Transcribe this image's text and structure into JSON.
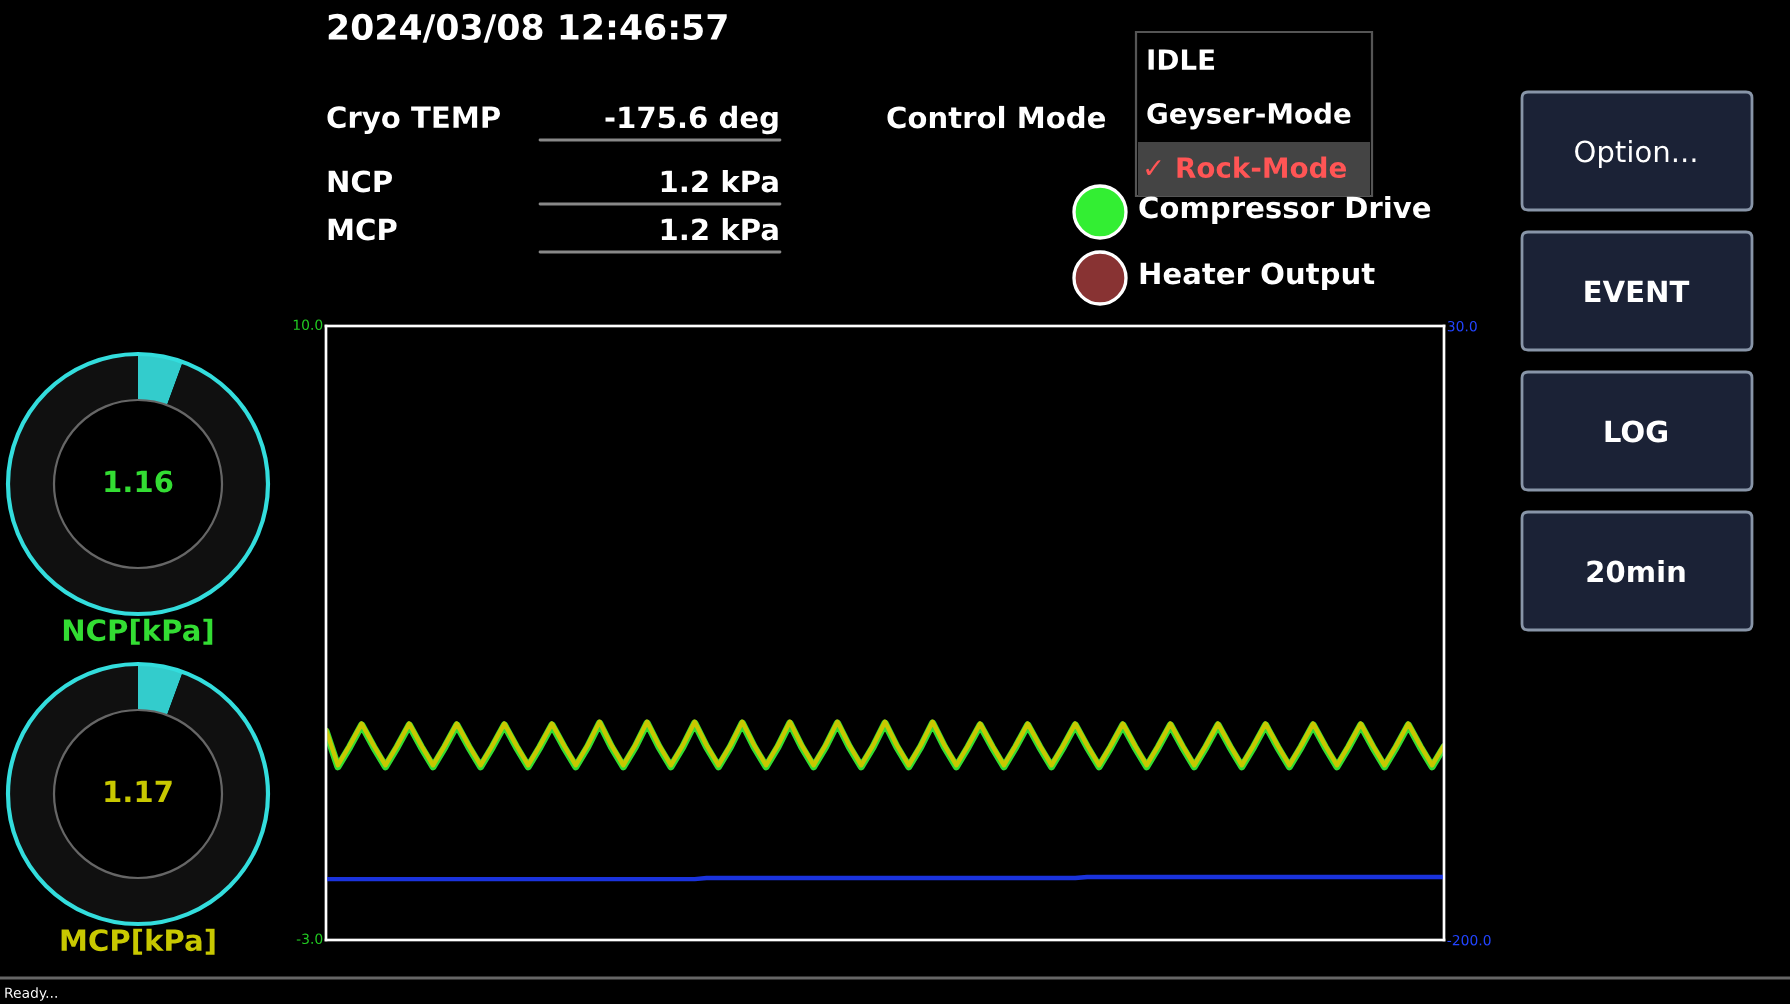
{
  "chart_data": [
    {
      "type": "other",
      "title": "2024/03/08 12:46:57",
      "annotations": [
        "Cryo TEMP",
        "-175.6 deg",
        "NCP",
        "1.2 kPa",
        "MCP",
        "1.2 kPa",
        "Control Mode",
        "IDLE",
        "Geyser-Mode",
        "✓ Rock-Mode",
        "Compressor Drive",
        "Heater Output",
        "Option...",
        "EVENT",
        "LOG",
        "20min",
        "Ready..."
      ]
    },
    {
      "type": "donut",
      "categories": [
        null,
        null
      ],
      "values": [
        5.6,
        94.4
      ],
      "colors": [
        "#33cccc",
        "#101010"
      ],
      "xlabel": "NCP[kPa]",
      "annotations": [
        "1.16"
      ]
    },
    {
      "type": "donut",
      "categories": [
        null,
        null
      ],
      "values": [
        5.6,
        94.4
      ],
      "colors": [
        "#33cccc",
        "#101010"
      ],
      "xlabel": "MCP[kPa]",
      "annotations": [
        "1.17"
      ]
    },
    {
      "type": "line",
      "categories": [
        null,
        null,
        null,
        null,
        null,
        null,
        null,
        null,
        null,
        null,
        null,
        null,
        null,
        null,
        null,
        null,
        null,
        null,
        null,
        null,
        null,
        null,
        null,
        null,
        null,
        null,
        null,
        null,
        null,
        null,
        null,
        null,
        null,
        null,
        null,
        null,
        null,
        null,
        null,
        null,
        null,
        null,
        null,
        null,
        null,
        null,
        null,
        null,
        null,
        null,
        null,
        null,
        null,
        null,
        null,
        null,
        null,
        null,
        null,
        null,
        null,
        null,
        null,
        null,
        null,
        null,
        null,
        null,
        null,
        null,
        null,
        null,
        null,
        null,
        null,
        null,
        null,
        null,
        null,
        null,
        null,
        null,
        null,
        null,
        null,
        null,
        null,
        null,
        null,
        null,
        null,
        null,
        null,
        null,
        null
      ],
      "ylim": [
        -3,
        10
      ],
      "yticks": [
        {
          "value": 10,
          "label": "10.0"
        },
        {
          "value": -3,
          "label": "-3.0"
        }
      ],
      "y2lim": [
        -200,
        30
      ],
      "y2ticks": [
        {
          "value": 30,
          "label": "30.0"
        },
        {
          "value": -200,
          "label": "-200.0"
        }
      ],
      "series": [
        {
          "color": "#33dd33",
          "values": [
            1.42,
            0.67,
            1.09,
            1.55,
            1.09,
            0.67,
            1.09,
            1.55,
            1.09,
            0.67,
            1.09,
            1.55,
            1.09,
            0.67,
            1.09,
            1.55,
            1.09,
            0.67,
            1.09,
            1.55,
            1.09,
            0.67,
            1.09,
            1.59,
            1.09,
            0.67,
            1.09,
            1.59,
            1.09,
            0.67,
            1.09,
            1.59,
            1.09,
            0.67,
            1.09,
            1.59,
            1.09,
            0.67,
            1.09,
            1.59,
            1.09,
            0.67,
            1.09,
            1.59,
            1.09,
            0.67,
            1.09,
            1.59,
            1.09,
            0.67,
            1.09,
            1.59,
            1.09,
            0.67,
            1.09,
            1.55,
            1.09,
            0.67,
            1.09,
            1.55,
            1.09,
            0.67,
            1.09,
            1.55,
            1.09,
            0.67,
            1.09,
            1.55,
            1.09,
            0.67,
            1.09,
            1.55,
            1.09,
            0.67,
            1.09,
            1.55,
            1.09,
            0.67,
            1.09,
            1.55,
            1.09,
            0.67,
            1.09,
            1.55,
            1.09,
            0.67,
            1.09,
            1.55,
            1.09,
            0.67,
            1.09,
            1.55,
            1.09,
            0.67,
            1.09
          ]
        },
        {
          "color": "#c8c800",
          "values": [
            1.45,
            0.7,
            1.12,
            1.58,
            1.12,
            0.7,
            1.12,
            1.58,
            1.12,
            0.7,
            1.12,
            1.58,
            1.12,
            0.7,
            1.12,
            1.58,
            1.12,
            0.7,
            1.12,
            1.58,
            1.12,
            0.7,
            1.12,
            1.62,
            1.12,
            0.7,
            1.12,
            1.62,
            1.12,
            0.7,
            1.12,
            1.62,
            1.12,
            0.7,
            1.12,
            1.62,
            1.12,
            0.7,
            1.12,
            1.62,
            1.12,
            0.7,
            1.12,
            1.62,
            1.12,
            0.7,
            1.12,
            1.62,
            1.12,
            0.7,
            1.12,
            1.62,
            1.12,
            0.7,
            1.12,
            1.58,
            1.12,
            0.7,
            1.12,
            1.58,
            1.12,
            0.7,
            1.12,
            1.58,
            1.12,
            0.7,
            1.12,
            1.58,
            1.12,
            0.7,
            1.12,
            1.58,
            1.12,
            0.7,
            1.12,
            1.58,
            1.12,
            0.7,
            1.12,
            1.58,
            1.12,
            0.7,
            1.12,
            1.58,
            1.12,
            0.7,
            1.12,
            1.58,
            1.12,
            0.7,
            1.12,
            1.58,
            1.12,
            0.7,
            1.12
          ]
        },
        {
          "color": "#1a33dd",
          "axis": "y2",
          "values": [
            -177.2,
            -177.2,
            -177.2,
            -177.2,
            -177.2,
            -177.2,
            -177.2,
            -177.2,
            -177.2,
            -177.2,
            -177.2,
            -177.2,
            -177.2,
            -177.2,
            -177.2,
            -177.2,
            -177.2,
            -177.2,
            -177.2,
            -177.2,
            -177.2,
            -177.2,
            -177.2,
            -177.2,
            -177.2,
            -177.2,
            -177.2,
            -177.2,
            -177.2,
            -177.2,
            -177.2,
            -177.2,
            -176.8,
            -176.8,
            -176.8,
            -176.8,
            -176.8,
            -176.8,
            -176.8,
            -176.8,
            -176.8,
            -176.8,
            -176.8,
            -176.8,
            -176.8,
            -176.8,
            -176.8,
            -176.8,
            -176.8,
            -176.8,
            -176.8,
            -176.8,
            -176.8,
            -176.8,
            -176.8,
            -176.8,
            -176.8,
            -176.8,
            -176.8,
            -176.8,
            -176.8,
            -176.8,
            -176.8,
            -176.8,
            -176.4,
            -176.4,
            -176.4,
            -176.4,
            -176.4,
            -176.4,
            -176.4,
            -176.4,
            -176.4,
            -176.4,
            -176.4,
            -176.4,
            -176.4,
            -176.4,
            -176.4,
            -176.4,
            -176.4,
            -176.4,
            -176.4,
            -176.4,
            -176.4,
            -176.4,
            -176.4,
            -176.4,
            -176.4,
            -176.4,
            -176.4,
            -176.4,
            -176.4,
            -176.4,
            -176.4
          ]
        }
      ]
    }
  ]
}
